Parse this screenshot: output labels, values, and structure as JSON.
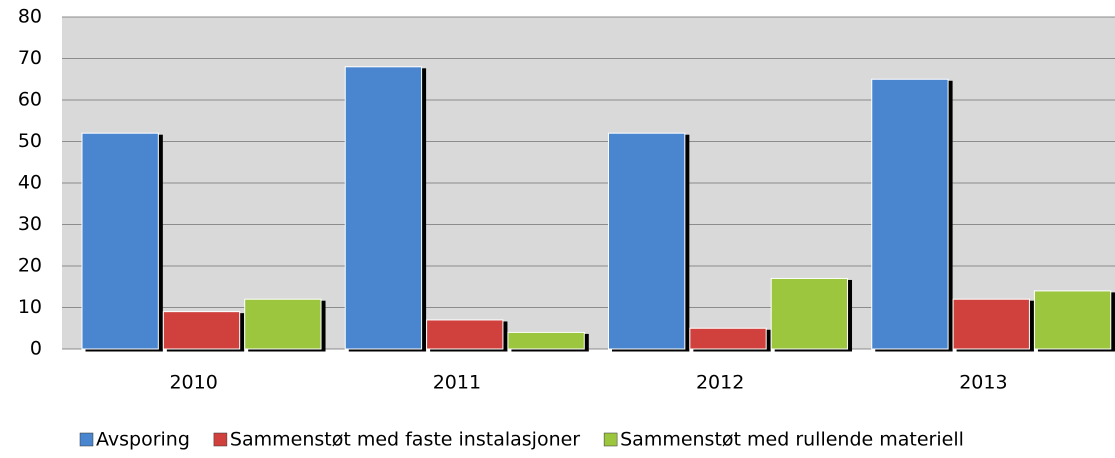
{
  "chart_data": {
    "type": "bar",
    "categories": [
      "2010",
      "2011",
      "2012",
      "2013"
    ],
    "series": [
      {
        "name": "Avsporing",
        "color": "#4a86d0",
        "values": [
          52,
          68,
          52,
          65
        ]
      },
      {
        "name": "Sammenstøt med faste instalasjoner",
        "color": "#d0413d",
        "values": [
          9,
          7,
          5,
          12
        ]
      },
      {
        "name": "Sammenstøt med rullende materiell",
        "color": "#9dc63f",
        "values": [
          12,
          4,
          17,
          14
        ]
      }
    ],
    "ylim": [
      0,
      80
    ],
    "yticks": [
      0,
      10,
      20,
      30,
      40,
      50,
      60,
      70,
      80
    ],
    "grid": true,
    "legend": "bottom"
  }
}
